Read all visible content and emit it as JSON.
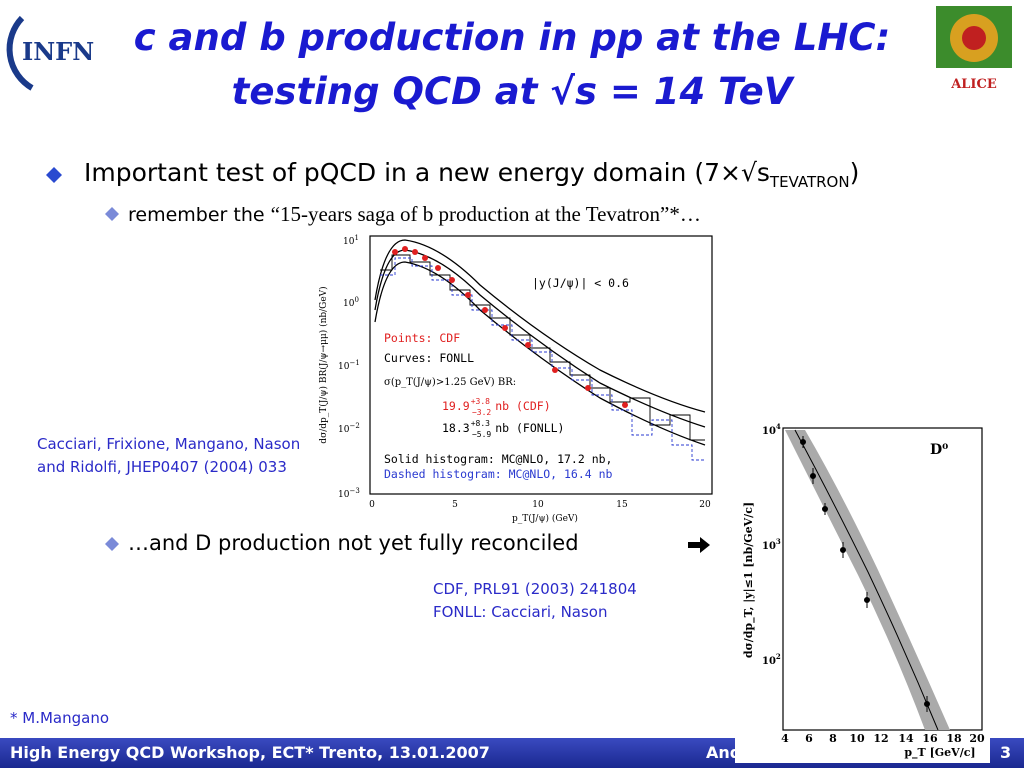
{
  "header": {
    "logo_left": "INFN",
    "logo_right": "ALICE",
    "title_line1": "c and b production in pp at the LHC:",
    "title_line2": "testing QCD at √s = 14 TeV"
  },
  "bullets": [
    {
      "text": "Important test of pQCD in a new energy domain ",
      "paren": "(7×√s",
      "sub": "TEVATRON",
      "close": ")"
    },
    {
      "text": "remember the ",
      "quote": "“15-years saga of b production at the Tevatron”*…"
    },
    {
      "text": "…and D production not yet fully reconciled"
    }
  ],
  "plot_b": {
    "y_label": "dσ/dp_T(J/ψ) BR(J/ψ→μμ) (nb/GeV)",
    "x_label": "p_T(J/ψ) (GeV)",
    "yticks": [
      {
        "base": "10",
        "exp": "1"
      },
      {
        "base": "10",
        "exp": "0"
      },
      {
        "base": "10",
        "exp": "−1"
      },
      {
        "base": "10",
        "exp": "−2"
      },
      {
        "base": "10",
        "exp": "−3"
      }
    ],
    "xticks": [
      "0",
      "5",
      "10",
      "15",
      "20"
    ],
    "rapidity": "|y(J/ψ)|  <  0.6",
    "points": "Points: CDF",
    "curves": "Curves: FONLL",
    "sigma": "σ(p_T(J/ψ)>1.25 GeV) BR:",
    "cdf_val": "19.9",
    "cdf_up": "+3.8",
    "cdf_dn": "−3.2",
    "cdf_unit": "nb (CDF)",
    "fonll_val": "18.3",
    "fonll_up": "+8.3",
    "fonll_dn": "−5.9",
    "fonll_unit": "nb (FONLL)",
    "solid": "Solid histogram: MC@NLO, 17.2 nb,",
    "dashed": "Dashed histogram: MC@NLO, 16.4 nb"
  },
  "citation_b": [
    "Cacciari, Frixione, Mangano, Nason",
    "and Ridolfi, JHEP0407 (2004) 033"
  ],
  "plot_d": {
    "label": "D⁰",
    "y_label": "dσ/dp_T, |y|≤1 [nb/GeV/c]",
    "x_label": "p_T  [GeV/c]",
    "yticks": [
      {
        "base": "10",
        "exp": "4"
      },
      {
        "base": "10",
        "exp": "3"
      },
      {
        "base": "10",
        "exp": "2"
      }
    ],
    "xticks": [
      "4",
      "6",
      "8",
      "10",
      "12",
      "14",
      "16",
      "18",
      "20"
    ]
  },
  "citation_d": [
    "CDF, PRL91 (2003) 241804",
    "FONLL: Cacciari, Nason"
  ],
  "footnote": "* M.Mangano",
  "footer": {
    "left": "High Energy QCD Workshop, ECT* Trento, 13.01.2007",
    "author": "And",
    "page": "3"
  }
}
